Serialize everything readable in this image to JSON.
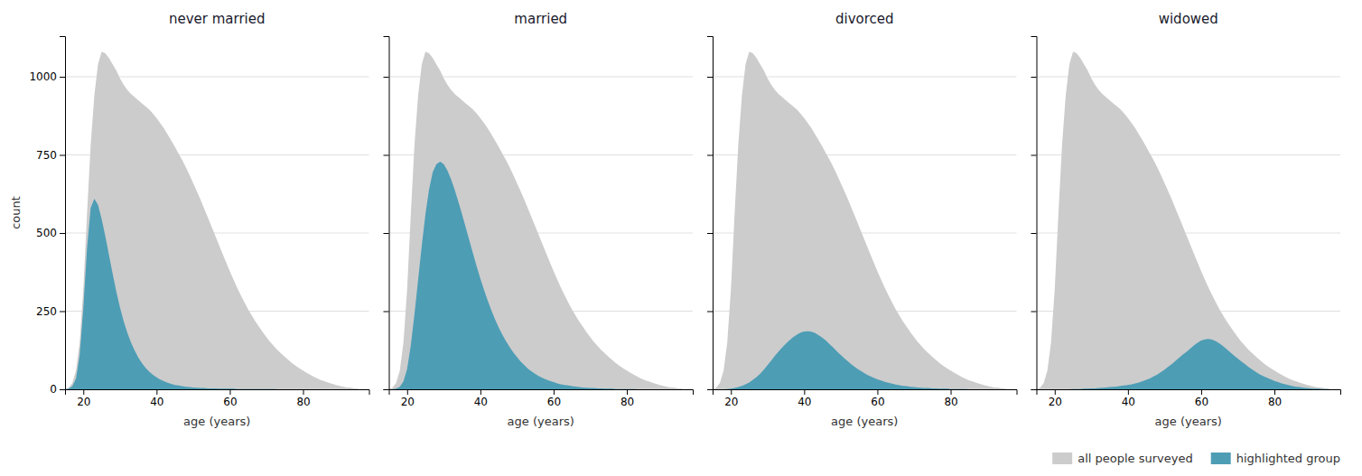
{
  "chart_data": [
    {
      "type": "area",
      "title": "never married",
      "xlabel": "age (years)",
      "ylabel": "count",
      "x": [
        15,
        16,
        17,
        18,
        19,
        20,
        21,
        22,
        23,
        24,
        25,
        26,
        27,
        28,
        29,
        30,
        31,
        32,
        33,
        34,
        35,
        36,
        37,
        38,
        39,
        40,
        41,
        42,
        43,
        44,
        45,
        46,
        47,
        48,
        49,
        50,
        51,
        52,
        53,
        54,
        55,
        56,
        57,
        58,
        59,
        60,
        61,
        62,
        63,
        64,
        65,
        66,
        67,
        68,
        69,
        70,
        71,
        72,
        73,
        74,
        75,
        76,
        77,
        78,
        79,
        80,
        81,
        82,
        83,
        84,
        85,
        86,
        87,
        88,
        89,
        90,
        91,
        92,
        93,
        94,
        95
      ],
      "series": [
        {
          "name": "all people surveyed",
          "color": "#cccccc",
          "values": [
            0,
            5,
            20,
            60,
            150,
            320,
            560,
            780,
            940,
            1040,
            1080,
            1075,
            1060,
            1040,
            1020,
            995,
            975,
            958,
            945,
            935,
            925,
            915,
            905,
            895,
            882,
            868,
            852,
            835,
            816,
            796,
            776,
            754,
            733,
            710,
            686,
            660,
            634,
            607,
            578,
            550,
            521,
            492,
            463,
            434,
            406,
            378,
            351,
            325,
            301,
            278,
            256,
            236,
            217,
            200,
            183,
            167,
            152,
            139,
            126,
            115,
            104,
            94,
            84,
            75,
            67,
            60,
            53,
            46,
            40,
            34,
            29,
            25,
            21,
            17,
            14,
            11,
            8,
            6,
            5,
            3,
            2
          ]
        },
        {
          "name": "highlighted group",
          "color": "#4d9db5",
          "values": [
            0,
            2,
            10,
            35,
            110,
            260,
            450,
            580,
            610,
            590,
            545,
            490,
            430,
            370,
            313,
            262,
            218,
            181,
            150,
            124,
            102,
            84,
            69,
            56,
            46,
            38,
            31,
            26,
            21,
            17,
            14,
            12,
            10,
            8,
            7,
            6,
            5,
            4,
            4,
            3,
            3,
            3,
            2,
            2,
            2,
            2,
            2,
            1,
            1,
            1,
            1,
            1,
            1,
            1,
            1,
            1,
            1,
            1,
            0,
            0,
            0,
            0,
            0,
            0,
            0,
            0,
            0,
            0,
            0,
            0,
            0,
            0,
            0,
            0,
            0,
            0,
            0,
            0,
            0,
            0,
            0
          ]
        }
      ],
      "xlim": [
        15,
        98
      ],
      "xticks": [
        20,
        40,
        60,
        80
      ],
      "ylim": [
        0,
        1130
      ],
      "yticks": [
        0,
        250,
        500,
        750,
        1000
      ],
      "grid": true,
      "legend": "lower right"
    },
    {
      "type": "area",
      "title": "married",
      "xlabel": "age (years)",
      "x": [
        15,
        16,
        17,
        18,
        19,
        20,
        21,
        22,
        23,
        24,
        25,
        26,
        27,
        28,
        29,
        30,
        31,
        32,
        33,
        34,
        35,
        36,
        37,
        38,
        39,
        40,
        41,
        42,
        43,
        44,
        45,
        46,
        47,
        48,
        49,
        50,
        51,
        52,
        53,
        54,
        55,
        56,
        57,
        58,
        59,
        60,
        61,
        62,
        63,
        64,
        65,
        66,
        67,
        68,
        69,
        70,
        71,
        72,
        73,
        74,
        75,
        76,
        77,
        78,
        79,
        80,
        81,
        82,
        83,
        84,
        85,
        86,
        87,
        88,
        89,
        90,
        91,
        92,
        93,
        94,
        95
      ],
      "series": [
        {
          "name": "all people surveyed",
          "color": "#cccccc",
          "values": [
            0,
            5,
            20,
            60,
            150,
            320,
            560,
            780,
            940,
            1040,
            1080,
            1075,
            1060,
            1040,
            1020,
            995,
            975,
            958,
            945,
            935,
            925,
            915,
            905,
            895,
            882,
            868,
            852,
            835,
            816,
            796,
            776,
            754,
            733,
            710,
            686,
            660,
            634,
            607,
            578,
            550,
            521,
            492,
            463,
            434,
            406,
            378,
            351,
            325,
            301,
            278,
            256,
            236,
            217,
            200,
            183,
            167,
            152,
            139,
            126,
            115,
            104,
            94,
            84,
            75,
            67,
            60,
            53,
            46,
            40,
            34,
            29,
            25,
            21,
            17,
            14,
            11,
            8,
            6,
            5,
            3,
            2
          ]
        },
        {
          "name": "highlighted group",
          "color": "#4d9db5",
          "values": [
            0,
            0,
            2,
            8,
            25,
            65,
            140,
            240,
            350,
            460,
            560,
            640,
            695,
            720,
            728,
            720,
            700,
            672,
            638,
            600,
            560,
            518,
            476,
            434,
            393,
            354,
            318,
            284,
            253,
            224,
            198,
            175,
            154,
            135,
            118,
            103,
            89,
            77,
            66,
            57,
            49,
            42,
            36,
            31,
            27,
            23,
            19,
            16,
            14,
            12,
            10,
            9,
            7,
            6,
            5,
            4,
            4,
            3,
            3,
            2,
            2,
            2,
            1,
            1,
            1,
            1,
            1,
            1,
            0,
            0,
            0,
            0,
            0,
            0,
            0,
            0,
            0,
            0,
            0,
            0,
            0
          ]
        }
      ],
      "xlim": [
        15,
        98
      ],
      "xticks": [
        20,
        40,
        60,
        80
      ],
      "ylim": [
        0,
        1130
      ],
      "yticks": [
        0,
        250,
        500,
        750,
        1000
      ],
      "grid": true,
      "tick_labels": "x"
    },
    {
      "type": "area",
      "title": "divorced",
      "xlabel": "age (years)",
      "x": [
        15,
        16,
        17,
        18,
        19,
        20,
        21,
        22,
        23,
        24,
        25,
        26,
        27,
        28,
        29,
        30,
        31,
        32,
        33,
        34,
        35,
        36,
        37,
        38,
        39,
        40,
        41,
        42,
        43,
        44,
        45,
        46,
        47,
        48,
        49,
        50,
        51,
        52,
        53,
        54,
        55,
        56,
        57,
        58,
        59,
        60,
        61,
        62,
        63,
        64,
        65,
        66,
        67,
        68,
        69,
        70,
        71,
        72,
        73,
        74,
        75,
        76,
        77,
        78,
        79,
        80,
        81,
        82,
        83,
        84,
        85,
        86,
        87,
        88,
        89,
        90,
        91,
        92,
        93,
        94,
        95
      ],
      "series": [
        {
          "name": "all people surveyed",
          "color": "#cccccc",
          "values": [
            0,
            5,
            20,
            60,
            150,
            320,
            560,
            780,
            940,
            1040,
            1080,
            1075,
            1060,
            1040,
            1020,
            995,
            975,
            958,
            945,
            935,
            925,
            915,
            905,
            895,
            882,
            868,
            852,
            835,
            816,
            796,
            776,
            754,
            733,
            710,
            686,
            660,
            634,
            607,
            578,
            550,
            521,
            492,
            463,
            434,
            406,
            378,
            351,
            325,
            301,
            278,
            256,
            236,
            217,
            200,
            183,
            167,
            152,
            139,
            126,
            115,
            104,
            94,
            84,
            75,
            67,
            60,
            53,
            46,
            40,
            34,
            29,
            25,
            21,
            17,
            14,
            11,
            8,
            6,
            5,
            3,
            2
          ]
        },
        {
          "name": "highlighted group",
          "color": "#4d9db5",
          "values": [
            0,
            0,
            0,
            0,
            1,
            2,
            4,
            7,
            11,
            16,
            22,
            30,
            39,
            50,
            63,
            77,
            92,
            107,
            121,
            134,
            146,
            157,
            167,
            175,
            181,
            185,
            186,
            184,
            180,
            173,
            165,
            155,
            144,
            133,
            121,
            110,
            99,
            89,
            79,
            70,
            62,
            55,
            48,
            42,
            37,
            32,
            28,
            24,
            21,
            18,
            15,
            13,
            11,
            10,
            8,
            7,
            6,
            5,
            4,
            4,
            3,
            3,
            2,
            2,
            2,
            1,
            1,
            1,
            1,
            1,
            0,
            0,
            0,
            0,
            0,
            0,
            0,
            0,
            0,
            0,
            0
          ]
        }
      ],
      "xlim": [
        15,
        98
      ],
      "xticks": [
        20,
        40,
        60,
        80
      ],
      "ylim": [
        0,
        1130
      ],
      "yticks": [
        0,
        250,
        500,
        750,
        1000
      ],
      "grid": true,
      "tick_labels": "x"
    },
    {
      "type": "area",
      "title": "widowed",
      "xlabel": "age (years)",
      "x": [
        15,
        16,
        17,
        18,
        19,
        20,
        21,
        22,
        23,
        24,
        25,
        26,
        27,
        28,
        29,
        30,
        31,
        32,
        33,
        34,
        35,
        36,
        37,
        38,
        39,
        40,
        41,
        42,
        43,
        44,
        45,
        46,
        47,
        48,
        49,
        50,
        51,
        52,
        53,
        54,
        55,
        56,
        57,
        58,
        59,
        60,
        61,
        62,
        63,
        64,
        65,
        66,
        67,
        68,
        69,
        70,
        71,
        72,
        73,
        74,
        75,
        76,
        77,
        78,
        79,
        80,
        81,
        82,
        83,
        84,
        85,
        86,
        87,
        88,
        89,
        90,
        91,
        92,
        93,
        94,
        95
      ],
      "series": [
        {
          "name": "all people surveyed",
          "color": "#cccccc",
          "values": [
            0,
            5,
            20,
            60,
            150,
            320,
            560,
            780,
            940,
            1040,
            1080,
            1075,
            1060,
            1040,
            1020,
            995,
            975,
            958,
            945,
            935,
            925,
            915,
            905,
            895,
            882,
            868,
            852,
            835,
            816,
            796,
            776,
            754,
            733,
            710,
            686,
            660,
            634,
            607,
            578,
            550,
            521,
            492,
            463,
            434,
            406,
            378,
            351,
            325,
            301,
            278,
            256,
            236,
            217,
            200,
            183,
            167,
            152,
            139,
            126,
            115,
            104,
            94,
            84,
            75,
            67,
            60,
            53,
            46,
            40,
            34,
            29,
            25,
            21,
            17,
            14,
            11,
            8,
            6,
            5,
            3,
            2
          ]
        },
        {
          "name": "highlighted group",
          "color": "#4d9db5",
          "values": [
            0,
            0,
            0,
            0,
            0,
            0,
            0,
            0,
            0,
            0,
            1,
            1,
            1,
            2,
            2,
            3,
            3,
            4,
            5,
            6,
            7,
            8,
            9,
            11,
            12,
            14,
            16,
            19,
            22,
            26,
            30,
            35,
            41,
            47,
            55,
            63,
            72,
            81,
            91,
            101,
            111,
            120,
            130,
            140,
            149,
            156,
            160,
            161,
            159,
            154,
            147,
            138,
            128,
            118,
            108,
            98,
            89,
            80,
            71,
            63,
            55,
            48,
            42,
            37,
            32,
            27,
            23,
            19,
            16,
            13,
            10,
            8,
            7,
            5,
            4,
            3,
            2,
            2,
            1,
            1,
            0
          ]
        }
      ],
      "xlim": [
        15,
        98
      ],
      "xticks": [
        20,
        40,
        60,
        80
      ],
      "ylim": [
        0,
        1130
      ],
      "yticks": [
        0,
        250,
        500,
        750,
        1000
      ],
      "grid": true,
      "tick_labels": "x"
    }
  ]
}
